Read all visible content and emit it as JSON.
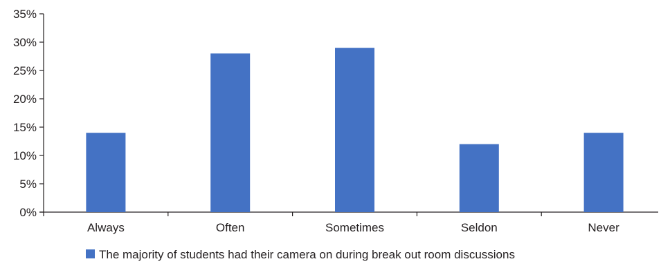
{
  "chart_data": {
    "type": "bar",
    "categories": [
      "Always",
      "Often",
      "Sometimes",
      "Seldon",
      "Never"
    ],
    "series": [
      {
        "name": "The majority of students had their camera on during break out room discussions",
        "values": [
          14,
          28,
          29,
          12,
          14
        ],
        "color": "#4472c4"
      }
    ],
    "y_ticks": [
      "0%",
      "5%",
      "10%",
      "15%",
      "20%",
      "25%",
      "30%",
      "35%"
    ],
    "ylim": [
      0,
      35
    ],
    "y_unit": "%",
    "title": "",
    "xlabel": "",
    "ylabel": "",
    "grid": false,
    "legend_position": "bottom-center",
    "colors": {
      "axis": "#231f20",
      "bar": "#4472c4"
    }
  }
}
